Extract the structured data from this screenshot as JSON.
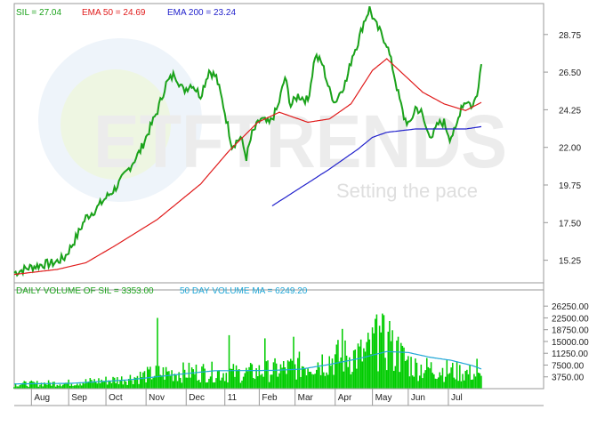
{
  "watermark": {
    "brand": "ETFTRENDS",
    "tagline": "Setting the pace"
  },
  "price_legend": [
    {
      "text": "SIL = 27.04",
      "color": "#1aa21a"
    },
    {
      "text": "EMA 50 = 24.69",
      "color": "#e01b1b"
    },
    {
      "text": "EMA 200 = 23.24",
      "color": "#2222cc"
    }
  ],
  "volume_legend": [
    {
      "text": "DAILY VOLUME OF SIL = 3353.00",
      "color": "#1aa21a"
    },
    {
      "text": "50 DAY VOLUME MA = 6249.20",
      "color": "#1fa6d6"
    }
  ],
  "chart_data": [
    {
      "type": "line",
      "title": "",
      "yticks": [
        "28.75",
        "26.50",
        "24.25",
        "22.00",
        "19.75",
        "17.50",
        "15.25"
      ],
      "ylim": [
        13.9,
        30.6
      ],
      "grid": true,
      "series": [
        {
          "name": "SIL",
          "color": "#1aa21a",
          "points": [
            [
              0,
              14.5
            ],
            [
              10,
              14.8
            ],
            [
              20,
              15.0
            ],
            [
              28,
              15.1
            ],
            [
              35,
              15.4
            ],
            [
              42,
              16.4
            ],
            [
              50,
              17.8
            ],
            [
              57,
              18.3
            ],
            [
              63,
              18.9
            ],
            [
              70,
              19.5
            ],
            [
              76,
              20.2
            ],
            [
              82,
              21.0
            ],
            [
              88,
              21.8
            ],
            [
              94,
              23.0
            ],
            [
              100,
              24.2
            ],
            [
              106,
              25.8
            ],
            [
              112,
              26.4
            ],
            [
              118,
              25.4
            ],
            [
              124,
              25.8
            ],
            [
              130,
              25.1
            ],
            [
              136,
              26.6
            ],
            [
              141,
              26.2
            ],
            [
              146,
              24.5
            ],
            [
              152,
              22.1
            ],
            [
              158,
              22.6
            ],
            [
              162,
              21.4
            ],
            [
              166,
              22.8
            ],
            [
              172,
              23.7
            ],
            [
              178,
              23.4
            ],
            [
              184,
              24.4
            ],
            [
              189,
              26.2
            ],
            [
              193,
              24.5
            ],
            [
              198,
              25.1
            ],
            [
              205,
              24.8
            ],
            [
              210,
              27.5
            ],
            [
              215,
              27.0
            ],
            [
              220,
              25.4
            ],
            [
              224,
              24.7
            ],
            [
              228,
              25.4
            ],
            [
              232,
              26.0
            ],
            [
              236,
              27.5
            ],
            [
              240,
              28.3
            ],
            [
              244,
              29.5
            ],
            [
              248,
              30.3
            ],
            [
              252,
              29.4
            ],
            [
              256,
              28.8
            ],
            [
              260,
              28.2
            ],
            [
              264,
              26.8
            ],
            [
              268,
              25.2
            ],
            [
              272,
              23.8
            ],
            [
              276,
              23.3
            ],
            [
              280,
              24.4
            ],
            [
              284,
              24.1
            ],
            [
              288,
              23.0
            ],
            [
              292,
              22.7
            ],
            [
              296,
              23.4
            ],
            [
              300,
              23.5
            ],
            [
              304,
              22.6
            ],
            [
              308,
              23.0
            ],
            [
              312,
              24.5
            ],
            [
              316,
              24.8
            ],
            [
              320,
              24.4
            ],
            [
              323,
              25.3
            ],
            [
              326,
              27.0
            ]
          ]
        },
        {
          "name": "EMA 50",
          "color": "#e01b1b",
          "points": [
            [
              0,
              14.4
            ],
            [
              30,
              14.7
            ],
            [
              50,
              15.1
            ],
            [
              70,
              16.1
            ],
            [
              100,
              17.7
            ],
            [
              130,
              19.8
            ],
            [
              150,
              21.8
            ],
            [
              170,
              23.5
            ],
            [
              185,
              24.1
            ],
            [
              195,
              23.8
            ],
            [
              205,
              23.5
            ],
            [
              220,
              23.7
            ],
            [
              235,
              24.6
            ],
            [
              250,
              26.6
            ],
            [
              260,
              27.3
            ],
            [
              270,
              26.5
            ],
            [
              285,
              25.3
            ],
            [
              300,
              24.6
            ],
            [
              315,
              24.2
            ],
            [
              326,
              24.69
            ]
          ]
        },
        {
          "name": "EMA 200",
          "color": "#2222cc",
          "points": [
            [
              180,
              18.5
            ],
            [
              200,
              19.6
            ],
            [
              220,
              20.7
            ],
            [
              240,
              21.9
            ],
            [
              250,
              22.6
            ],
            [
              260,
              22.9
            ],
            [
              280,
              23.1
            ],
            [
              300,
              23.1
            ],
            [
              315,
              23.1
            ],
            [
              326,
              23.24
            ]
          ]
        }
      ]
    },
    {
      "type": "bar",
      "title": "",
      "yticks": [
        "26250.00",
        "22500.00",
        "18750.00",
        "15000.00",
        "11250.00",
        "7500.00",
        "3750.00"
      ],
      "ylim": [
        0,
        28000
      ],
      "grid": true,
      "series": [
        {
          "name": "DAILY VOLUME OF SIL",
          "color": "#00cc00",
          "anchors": [
            [
              0,
              1500
            ],
            [
              40,
              1900
            ],
            [
              75,
              3000
            ],
            [
              100,
              5000
            ],
            [
              130,
              5500
            ],
            [
              160,
              5000
            ],
            [
              190,
              6500
            ],
            [
              210,
              8500
            ],
            [
              225,
              10000
            ],
            [
              245,
              11000
            ],
            [
              255,
              16000
            ],
            [
              265,
              12000
            ],
            [
              280,
              7000
            ],
            [
              300,
              6000
            ],
            [
              320,
              5000
            ],
            [
              326,
              3353
            ]
          ],
          "spikes": [
            [
              100,
              22500
            ],
            [
              150,
              17000
            ],
            [
              175,
              16000
            ],
            [
              195,
              16500
            ],
            [
              229,
              19000
            ],
            [
              252,
              22200
            ],
            [
              255,
              20000
            ],
            [
              262,
              21500
            ],
            [
              268,
              16500
            ],
            [
              323,
              9500
            ]
          ]
        },
        {
          "name": "50 DAY VOLUME MA",
          "color": "#1fa6d6",
          "points": [
            [
              0,
              1500
            ],
            [
              40,
              1700
            ],
            [
              80,
              2800
            ],
            [
              120,
              4800
            ],
            [
              140,
              5700
            ],
            [
              180,
              5800
            ],
            [
              200,
              6200
            ],
            [
              220,
              7700
            ],
            [
              240,
              9500
            ],
            [
              260,
              11800
            ],
            [
              275,
              11500
            ],
            [
              290,
              10000
            ],
            [
              305,
              9000
            ],
            [
              320,
              7300
            ],
            [
              326,
              6249.2
            ]
          ]
        }
      ]
    }
  ],
  "x_axis": {
    "day_count": 326,
    "months": [
      {
        "label": "Aug",
        "day": 12
      },
      {
        "label": "Sep",
        "day": 38
      },
      {
        "label": "Oct",
        "day": 64
      },
      {
        "label": "Nov",
        "day": 92
      },
      {
        "label": "Dec",
        "day": 120
      },
      {
        "label": "11",
        "day": 147
      },
      {
        "label": "Feb",
        "day": 171
      },
      {
        "label": "Mar",
        "day": 196
      },
      {
        "label": "Apr",
        "day": 224
      },
      {
        "label": "May",
        "day": 250
      },
      {
        "label": "Jun",
        "day": 275
      },
      {
        "label": "Jul",
        "day": 303
      }
    ]
  }
}
